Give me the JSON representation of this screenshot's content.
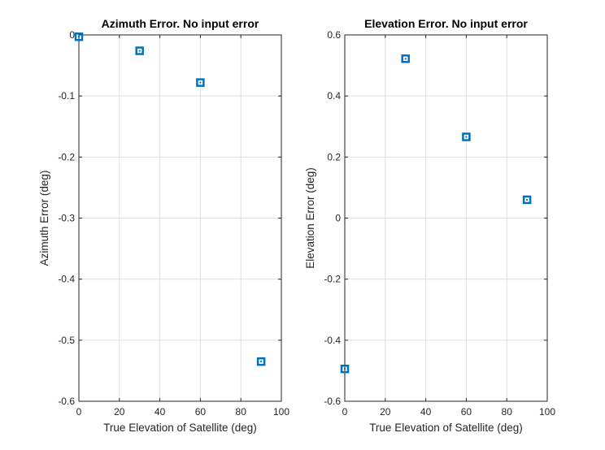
{
  "chart_data": [
    {
      "type": "scatter",
      "title": "Azimuth Error. No input error",
      "xlabel": "True Elevation of Satellite (deg)",
      "ylabel": "Azimuth Error (deg)",
      "xlim": [
        0,
        100
      ],
      "ylim": [
        -0.6,
        0
      ],
      "xticks": [
        0,
        20,
        40,
        60,
        80,
        100
      ],
      "xtick_labels": [
        "0",
        "20",
        "40",
        "60",
        "80",
        "100"
      ],
      "yticks": [
        0,
        -0.1,
        -0.2,
        -0.3,
        -0.4,
        -0.5,
        -0.6
      ],
      "ytick_labels": [
        "0",
        "-0.1",
        "-0.2",
        "-0.3",
        "-0.4",
        "-0.5",
        "-0.6"
      ],
      "grid": true,
      "marker": "square",
      "color": "#0072BD",
      "points": [
        {
          "x": 0,
          "y": -0.003
        },
        {
          "x": 30,
          "y": -0.026
        },
        {
          "x": 60,
          "y": -0.078
        },
        {
          "x": 90,
          "y": -0.535
        }
      ]
    },
    {
      "type": "scatter",
      "title": "Elevation Error. No input error",
      "xlabel": "True Elevation of Satellite (deg)",
      "ylabel": "Elevation Error (deg)",
      "xlim": [
        0,
        100
      ],
      "ylim": [
        -0.6,
        0.6
      ],
      "xticks": [
        0,
        20,
        40,
        60,
        80,
        100
      ],
      "xtick_labels": [
        "0",
        "20",
        "40",
        "60",
        "80",
        "100"
      ],
      "yticks": [
        0.6,
        0.4,
        0.2,
        0,
        -0.2,
        -0.4,
        -0.6
      ],
      "ytick_labels": [
        "0.6",
        "0.4",
        "0.2",
        "0",
        "-0.2",
        "-0.4",
        "-0.6"
      ],
      "grid": true,
      "marker": "square",
      "color": "#0072BD",
      "points": [
        {
          "x": 0,
          "y": -0.494
        },
        {
          "x": 30,
          "y": 0.522
        },
        {
          "x": 60,
          "y": 0.266
        },
        {
          "x": 90,
          "y": 0.06
        }
      ]
    }
  ]
}
